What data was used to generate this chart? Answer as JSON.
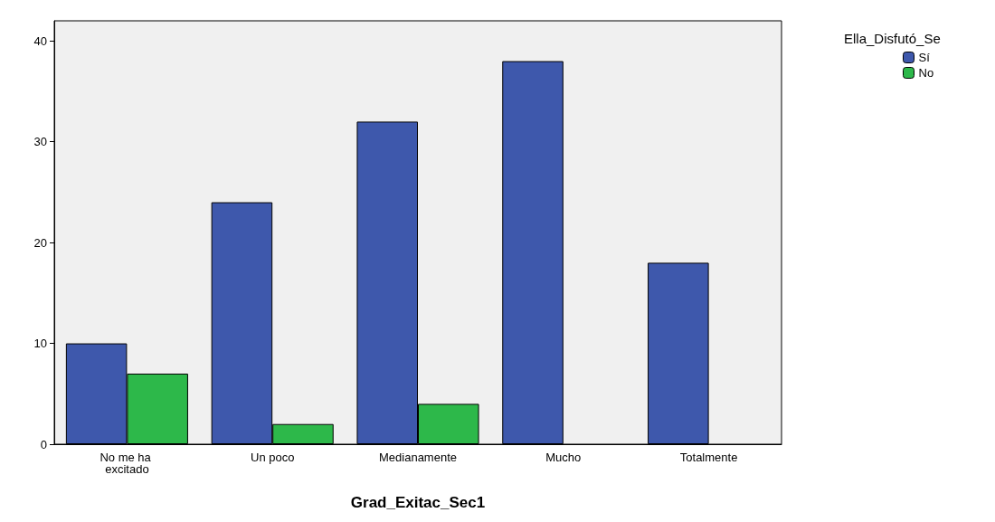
{
  "chart_data": {
    "type": "bar",
    "xlabel": "Grad_Exitac_Sec1",
    "legend_title": "Ella_Disfutó_Se",
    "categories": [
      "No me ha excitado",
      "Un poco",
      "Medianamente",
      "Mucho",
      "Totalmente"
    ],
    "series": [
      {
        "name": "Sí",
        "color": "#3e58ac",
        "values": [
          10,
          24,
          32,
          38,
          18
        ]
      },
      {
        "name": "No",
        "color": "#2db84a",
        "values": [
          7,
          2,
          4,
          null,
          null
        ]
      }
    ],
    "ylim": [
      0,
      42
    ],
    "yticks": [
      0,
      10,
      20,
      30,
      40
    ],
    "grid": false,
    "legend": "top right"
  }
}
